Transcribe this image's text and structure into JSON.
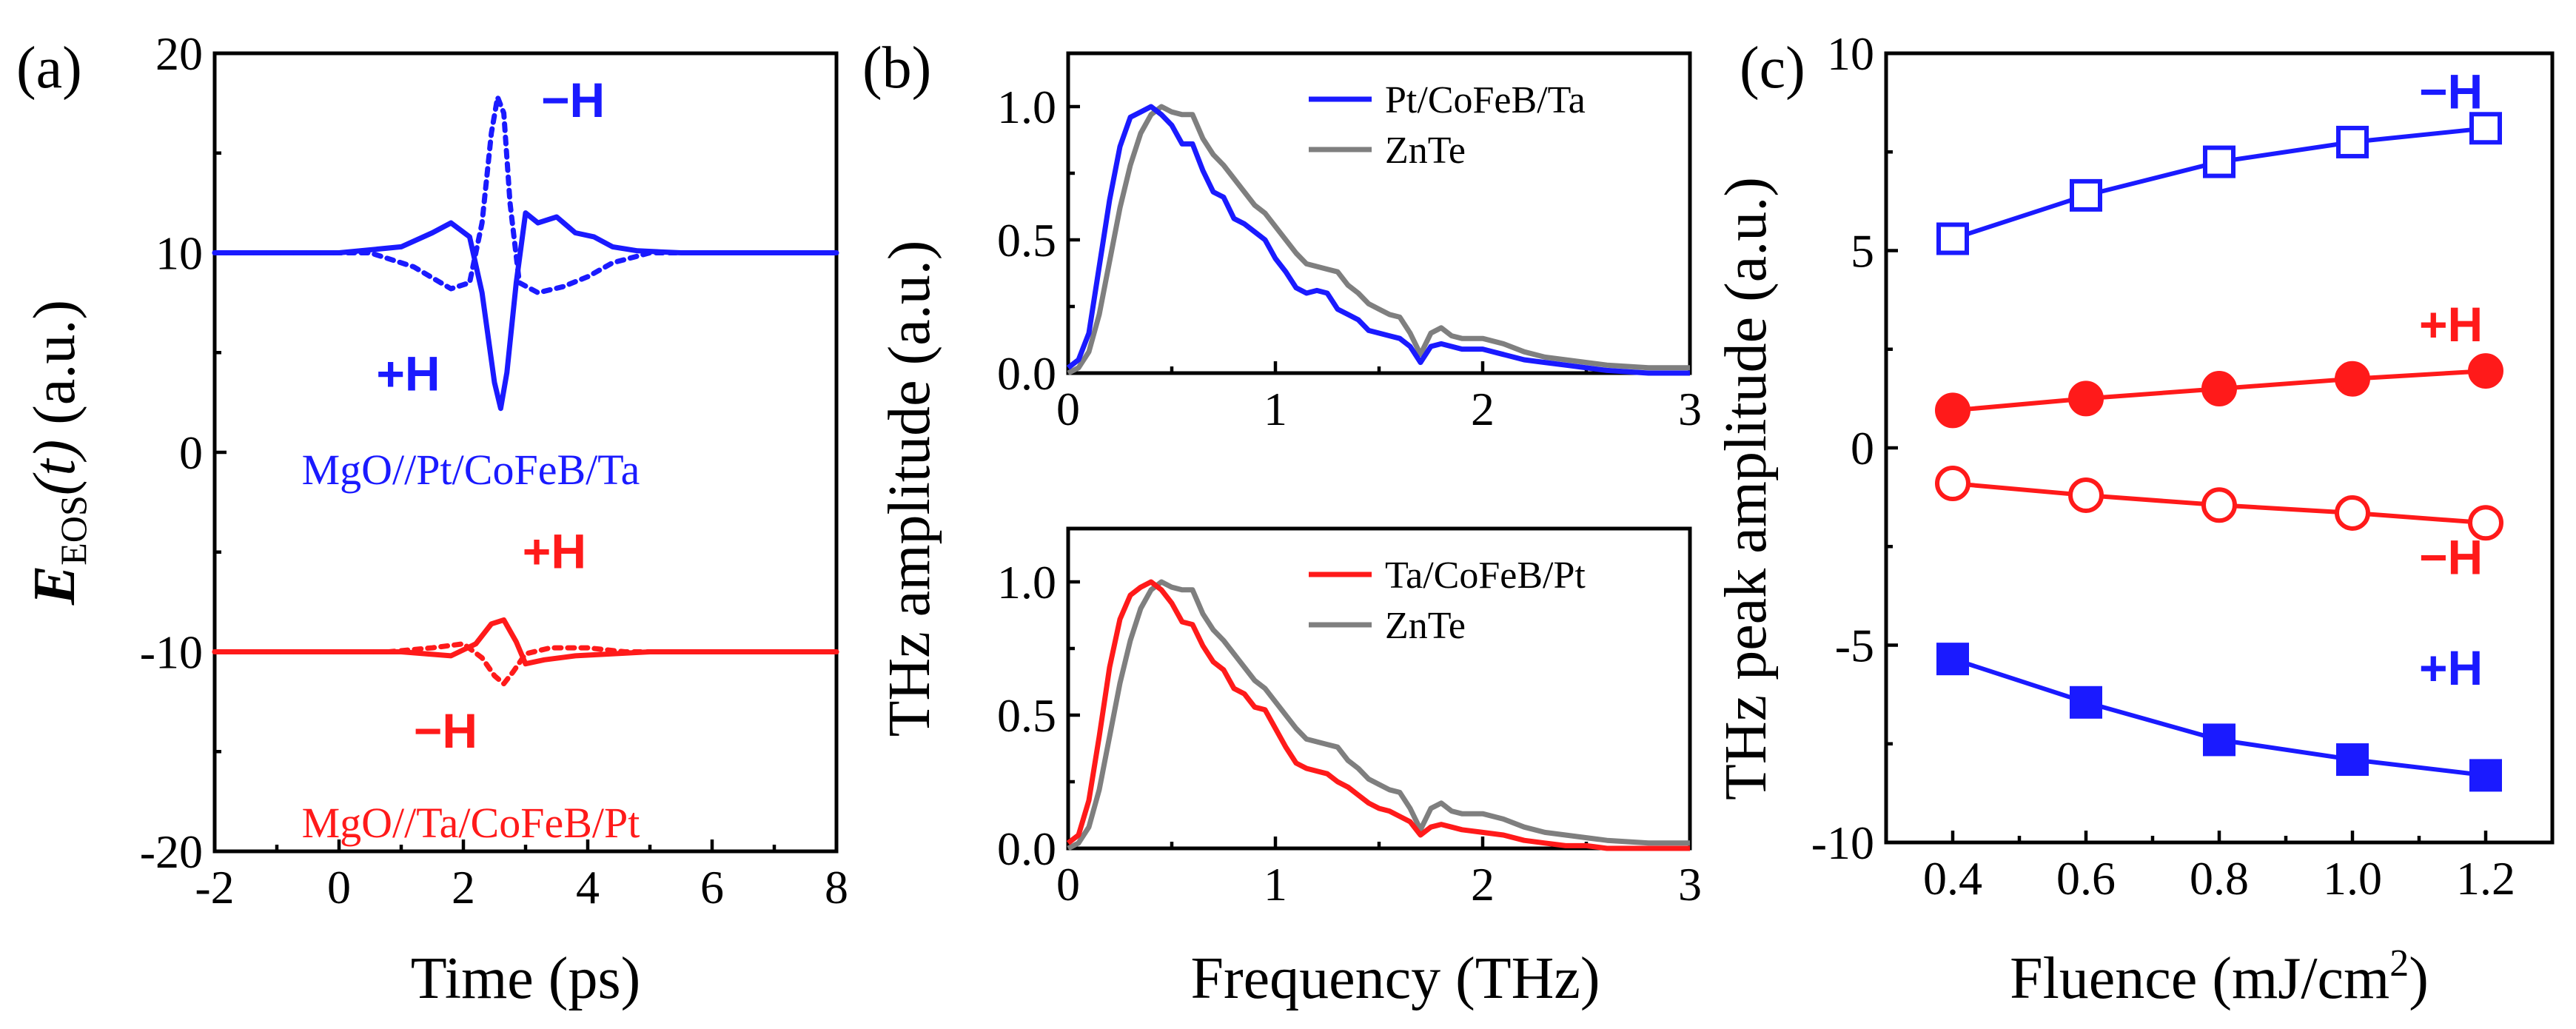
{
  "colors": {
    "blue": "#1a1aff",
    "red": "#ff1a1a",
    "gray": "#7f7f7f",
    "black": "#000000"
  },
  "chart_data": [
    {
      "panel": "(a)",
      "type": "line",
      "xlabel": "Time (ps)",
      "ylabel": {
        "main": "E",
        "sub": "EOS",
        "arg": "(t)",
        "unit": "(a.u.)"
      },
      "xlim": [
        -2,
        8
      ],
      "ylim": [
        -20,
        20
      ],
      "xticks": [
        -2,
        0,
        2,
        4,
        6,
        8
      ],
      "yticks": [
        -20,
        -10,
        0,
        10,
        20
      ],
      "xtick_labels": [
        "-2",
        "0",
        "2",
        "4",
        "6",
        "8"
      ],
      "ytick_labels": [
        "-20",
        "-10",
        "0",
        "10",
        "20"
      ],
      "series": [
        {
          "name": "MgO//Pt/CoFeB/Ta +H",
          "color": "blue",
          "style": "solid",
          "x": [
            -2,
            0,
            1,
            1.5,
            1.8,
            2.1,
            2.3,
            2.5,
            2.6,
            2.7,
            2.85,
            3.0,
            3.2,
            3.5,
            3.8,
            4.1,
            4.4,
            4.8,
            5.5,
            6.5,
            8
          ],
          "y": [
            10,
            10,
            10.3,
            11,
            11.5,
            10.8,
            8,
            3.5,
            2.2,
            4,
            8.5,
            12,
            11.5,
            11.8,
            11,
            10.8,
            10.3,
            10.1,
            10,
            10,
            10
          ]
        },
        {
          "name": "MgO//Pt/CoFeB/Ta -H",
          "color": "blue",
          "style": "dotted",
          "x": [
            -2,
            0.5,
            1.2,
            1.8,
            2.1,
            2.3,
            2.45,
            2.55,
            2.65,
            2.75,
            2.9,
            3.2,
            3.6,
            4.0,
            4.4,
            5.0,
            6,
            8
          ],
          "y": [
            10,
            10,
            9.3,
            8.2,
            8.5,
            11.5,
            16,
            17.8,
            17,
            12.5,
            8.5,
            8,
            8.3,
            8.8,
            9.5,
            10,
            10,
            10
          ]
        },
        {
          "name": "MgO//Ta/CoFeB/Pt +H",
          "color": "red",
          "style": "solid",
          "x": [
            -2,
            1,
            1.8,
            2.2,
            2.45,
            2.65,
            2.85,
            3.0,
            3.3,
            3.8,
            5,
            8
          ],
          "y": [
            -10,
            -10,
            -10.2,
            -9.6,
            -8.6,
            -8.4,
            -9.5,
            -10.6,
            -10.4,
            -10.2,
            -10,
            -10
          ]
        },
        {
          "name": "MgO//Ta/CoFeB/Pt -H",
          "color": "red",
          "style": "dotted",
          "x": [
            -2,
            0.8,
            1.5,
            2.0,
            2.3,
            2.5,
            2.65,
            2.8,
            3.0,
            3.4,
            4.0,
            4.6,
            6,
            8
          ],
          "y": [
            -10,
            -10,
            -9.8,
            -9.6,
            -10.3,
            -11.2,
            -11.6,
            -11,
            -10.1,
            -9.8,
            -9.8,
            -10,
            -10,
            -10
          ]
        }
      ],
      "annotations": [
        {
          "text": "−H",
          "color": "blue",
          "kind": "ann",
          "x": 3.25,
          "y": 16.8
        },
        {
          "text": "+H",
          "color": "blue",
          "kind": "ann",
          "x": 0.6,
          "y": 3.1
        },
        {
          "text": "MgO//Pt/CoFeB/Ta",
          "color": "blue",
          "kind": "sample",
          "x": -0.6,
          "y": -1.6
        },
        {
          "text": "+H",
          "color": "red",
          "kind": "ann",
          "x": 2.95,
          "y": -5.8
        },
        {
          "text": "−H",
          "color": "red",
          "kind": "ann",
          "x": 1.2,
          "y": -14.8
        },
        {
          "text": "MgO//Ta/CoFeB/Pt",
          "color": "red",
          "kind": "sample",
          "x": -0.6,
          "y": -19.3
        }
      ]
    },
    {
      "panel": "(b)",
      "type": "line",
      "xlabel": "Frequency (THz)",
      "ylabel": "THz amplitude (a.u.)",
      "shared_ylabel_for": [
        "upper",
        "lower"
      ],
      "xlim": [
        0,
        3
      ],
      "ylim": [
        0,
        1.2
      ],
      "xticks": [
        0,
        1,
        2,
        3
      ],
      "yticks": [
        0,
        0.5,
        1.0
      ],
      "xtick_labels": [
        "0",
        "1",
        "2",
        "3"
      ],
      "ytick_labels": [
        "0.0",
        "0.5",
        "1.0"
      ],
      "subplots": [
        {
          "position": "upper",
          "legend": [
            "Pt/CoFeB/Ta",
            "ZnTe"
          ],
          "series": [
            {
              "name": "Pt/CoFeB/Ta",
              "color": "blue",
              "x": [
                0,
                0.05,
                0.1,
                0.15,
                0.2,
                0.25,
                0.3,
                0.35,
                0.4,
                0.45,
                0.5,
                0.55,
                0.6,
                0.65,
                0.7,
                0.75,
                0.8,
                0.85,
                0.9,
                0.95,
                1.0,
                1.05,
                1.1,
                1.15,
                1.2,
                1.25,
                1.3,
                1.35,
                1.4,
                1.45,
                1.5,
                1.55,
                1.6,
                1.65,
                1.7,
                1.75,
                1.8,
                1.85,
                1.9,
                2.0,
                2.1,
                2.2,
                2.3,
                2.4,
                2.5,
                2.6,
                2.8,
                3.0
              ],
              "y": [
                0.02,
                0.05,
                0.15,
                0.4,
                0.65,
                0.85,
                0.96,
                0.98,
                1.0,
                0.97,
                0.93,
                0.86,
                0.86,
                0.76,
                0.68,
                0.66,
                0.58,
                0.56,
                0.53,
                0.5,
                0.43,
                0.38,
                0.32,
                0.3,
                0.31,
                0.3,
                0.24,
                0.22,
                0.2,
                0.16,
                0.15,
                0.14,
                0.13,
                0.1,
                0.04,
                0.1,
                0.11,
                0.1,
                0.09,
                0.09,
                0.07,
                0.05,
                0.04,
                0.03,
                0.02,
                0.01,
                0.0,
                0.0
              ]
            },
            {
              "name": "ZnTe",
              "color": "gray",
              "x": [
                0,
                0.05,
                0.1,
                0.15,
                0.2,
                0.25,
                0.3,
                0.35,
                0.4,
                0.45,
                0.5,
                0.55,
                0.6,
                0.65,
                0.7,
                0.75,
                0.8,
                0.85,
                0.9,
                0.95,
                1.0,
                1.05,
                1.1,
                1.15,
                1.2,
                1.25,
                1.3,
                1.35,
                1.4,
                1.45,
                1.5,
                1.55,
                1.6,
                1.65,
                1.7,
                1.75,
                1.8,
                1.85,
                1.9,
                2.0,
                2.1,
                2.2,
                2.3,
                2.4,
                2.5,
                2.6,
                2.8,
                3.0
              ],
              "y": [
                0.0,
                0.02,
                0.08,
                0.22,
                0.42,
                0.62,
                0.78,
                0.9,
                0.97,
                1.0,
                0.98,
                0.97,
                0.97,
                0.88,
                0.82,
                0.78,
                0.73,
                0.68,
                0.63,
                0.6,
                0.55,
                0.5,
                0.45,
                0.41,
                0.4,
                0.39,
                0.38,
                0.33,
                0.3,
                0.26,
                0.24,
                0.22,
                0.21,
                0.15,
                0.07,
                0.15,
                0.17,
                0.14,
                0.13,
                0.13,
                0.11,
                0.08,
                0.06,
                0.05,
                0.04,
                0.03,
                0.02,
                0.02
              ]
            }
          ]
        },
        {
          "position": "lower",
          "legend": [
            "Ta/CoFeB/Pt",
            "ZnTe"
          ],
          "series": [
            {
              "name": "Ta/CoFeB/Pt",
              "color": "red",
              "x": [
                0,
                0.05,
                0.1,
                0.15,
                0.2,
                0.25,
                0.3,
                0.35,
                0.4,
                0.45,
                0.5,
                0.55,
                0.6,
                0.65,
                0.7,
                0.75,
                0.8,
                0.85,
                0.9,
                0.95,
                1.0,
                1.05,
                1.1,
                1.15,
                1.2,
                1.25,
                1.3,
                1.35,
                1.4,
                1.45,
                1.5,
                1.55,
                1.6,
                1.65,
                1.7,
                1.75,
                1.8,
                1.85,
                1.9,
                2.0,
                2.1,
                2.2,
                2.3,
                2.4,
                2.5,
                2.6,
                2.8,
                3.0
              ],
              "y": [
                0.02,
                0.05,
                0.18,
                0.42,
                0.68,
                0.86,
                0.95,
                0.98,
                1.0,
                0.97,
                0.92,
                0.85,
                0.84,
                0.76,
                0.7,
                0.67,
                0.6,
                0.58,
                0.53,
                0.52,
                0.45,
                0.38,
                0.32,
                0.3,
                0.29,
                0.28,
                0.25,
                0.23,
                0.2,
                0.17,
                0.15,
                0.14,
                0.12,
                0.1,
                0.05,
                0.08,
                0.09,
                0.08,
                0.07,
                0.06,
                0.05,
                0.03,
                0.02,
                0.01,
                0.01,
                0.0,
                0.0,
                0.0
              ]
            },
            {
              "name": "ZnTe",
              "color": "gray",
              "x": [
                0,
                0.05,
                0.1,
                0.15,
                0.2,
                0.25,
                0.3,
                0.35,
                0.4,
                0.45,
                0.5,
                0.55,
                0.6,
                0.65,
                0.7,
                0.75,
                0.8,
                0.85,
                0.9,
                0.95,
                1.0,
                1.05,
                1.1,
                1.15,
                1.2,
                1.25,
                1.3,
                1.35,
                1.4,
                1.45,
                1.5,
                1.55,
                1.6,
                1.65,
                1.7,
                1.75,
                1.8,
                1.85,
                1.9,
                2.0,
                2.1,
                2.2,
                2.3,
                2.4,
                2.5,
                2.6,
                2.8,
                3.0
              ],
              "y": [
                0.0,
                0.02,
                0.08,
                0.22,
                0.42,
                0.62,
                0.78,
                0.9,
                0.97,
                1.0,
                0.98,
                0.97,
                0.97,
                0.88,
                0.82,
                0.78,
                0.73,
                0.68,
                0.63,
                0.6,
                0.55,
                0.5,
                0.45,
                0.41,
                0.4,
                0.39,
                0.38,
                0.33,
                0.3,
                0.26,
                0.24,
                0.22,
                0.21,
                0.15,
                0.07,
                0.15,
                0.17,
                0.14,
                0.13,
                0.13,
                0.11,
                0.08,
                0.06,
                0.05,
                0.04,
                0.03,
                0.02,
                0.02
              ]
            }
          ]
        }
      ]
    },
    {
      "panel": "(c)",
      "type": "line",
      "xlabel": "Fluence (mJ/cm",
      "xlabel_sup": "2",
      "xlabel_end": ")",
      "ylabel": "THz peak amplitude (a.u.)",
      "xlim": [
        0.3,
        1.3
      ],
      "ylim": [
        -10,
        10
      ],
      "xticks": [
        0.4,
        0.6,
        0.8,
        1.0,
        1.2
      ],
      "yticks": [
        -10,
        -5,
        0,
        5,
        10
      ],
      "xtick_labels": [
        "0.4",
        "0.6",
        "0.8",
        "1.0",
        "1.2"
      ],
      "ytick_labels": [
        "-10",
        "-5",
        "0",
        "5",
        "10"
      ],
      "series": [
        {
          "name": "blue −H (open square)",
          "color": "blue",
          "marker": "square-open",
          "x": [
            0.4,
            0.6,
            0.8,
            1.0,
            1.2
          ],
          "y": [
            5.3,
            6.4,
            7.25,
            7.75,
            8.1
          ]
        },
        {
          "name": "red +H (filled circle)",
          "color": "red",
          "marker": "circle-filled",
          "x": [
            0.4,
            0.6,
            0.8,
            1.0,
            1.2
          ],
          "y": [
            0.95,
            1.25,
            1.5,
            1.75,
            1.95
          ]
        },
        {
          "name": "red −H (open circle)",
          "color": "red",
          "marker": "circle-open",
          "x": [
            0.4,
            0.6,
            0.8,
            1.0,
            1.2
          ],
          "y": [
            -0.9,
            -1.2,
            -1.45,
            -1.65,
            -1.9
          ]
        },
        {
          "name": "blue +H (filled square)",
          "color": "blue",
          "marker": "square-filled",
          "x": [
            0.4,
            0.6,
            0.8,
            1.0,
            1.2
          ],
          "y": [
            -5.35,
            -6.45,
            -7.4,
            -7.9,
            -8.3
          ]
        }
      ],
      "annotations": [
        {
          "text": "−H",
          "color": "blue",
          "x": 1.1,
          "y": 8.6
        },
        {
          "text": "+H",
          "color": "red",
          "x": 1.1,
          "y": 2.7
        },
        {
          "text": "−H",
          "color": "red",
          "x": 1.1,
          "y": -3.2
        },
        {
          "text": "+H",
          "color": "blue",
          "x": 1.1,
          "y": -6.0
        }
      ]
    }
  ]
}
